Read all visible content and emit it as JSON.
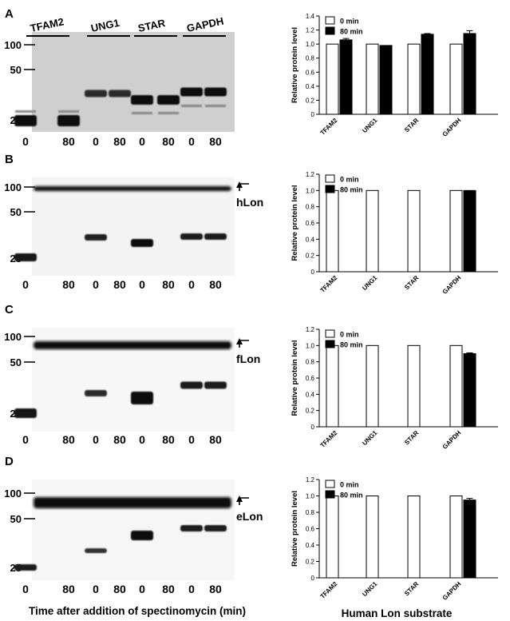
{
  "shared": {
    "gel_proteins": [
      "TFAM2",
      "UNG1",
      "STAR",
      "GAPDH"
    ],
    "lane_labels": [
      "0",
      "80",
      "0",
      "80",
      "0",
      "80",
      "0",
      "80"
    ],
    "mw_markers": [
      "100",
      "50",
      "25"
    ],
    "gel_xlabel": "Time after addition of spectinomycin (min)",
    "chart_xlabel": "Human Lon substrate"
  },
  "panels": [
    {
      "letter": "A",
      "lon_label": ""
    },
    {
      "letter": "B",
      "lon_label": "hLon"
    },
    {
      "letter": "C",
      "lon_label": "fLon"
    },
    {
      "letter": "D",
      "lon_label": "eLon"
    }
  ],
  "chart_data": [
    {
      "type": "bar",
      "panel": "A",
      "categories": [
        "TFAM2",
        "UNG1",
        "STAR",
        "GAPDH"
      ],
      "series": [
        {
          "name": "0 min",
          "values": [
            1.0,
            1.0,
            1.0,
            1.0
          ],
          "color": "#ffffff"
        },
        {
          "name": "80 min",
          "values": [
            1.06,
            0.98,
            1.14,
            1.15
          ],
          "errors": [
            0.02,
            0.0,
            0.01,
            0.04
          ],
          "color": "#000000"
        }
      ],
      "ylabel": "Relative protein level",
      "ylim": [
        0,
        1.4
      ],
      "yticks": [
        "0",
        "0.2",
        "0.4",
        "0.6",
        "0.8",
        "1.0",
        "1.2",
        "1.4"
      ],
      "legend": "top"
    },
    {
      "type": "bar",
      "panel": "B",
      "categories": [
        "TFAM2",
        "UNG1",
        "STAR",
        "GAPDH"
      ],
      "series": [
        {
          "name": "0 min",
          "values": [
            1.0,
            1.0,
            1.0,
            1.0
          ],
          "color": "#ffffff"
        },
        {
          "name": "80 min",
          "values": [
            0,
            0,
            0,
            1.0
          ],
          "errors": [
            0,
            0,
            0,
            0
          ],
          "color": "#000000"
        }
      ],
      "ylabel": "Relative protein level",
      "ylim": [
        0,
        1.2
      ],
      "yticks": [
        "0",
        "0.2",
        "0.4",
        "0.6",
        "0.8",
        "1.0",
        "1.2"
      ],
      "legend": "top"
    },
    {
      "type": "bar",
      "panel": "C",
      "categories": [
        "TFAM2",
        "UNG1",
        "STAR",
        "GAPDH"
      ],
      "series": [
        {
          "name": "0 min",
          "values": [
            1.0,
            1.0,
            1.0,
            1.0
          ],
          "color": "#ffffff"
        },
        {
          "name": "80 min",
          "values": [
            0,
            0,
            0,
            0.9
          ],
          "errors": [
            0,
            0,
            0,
            0.01
          ],
          "color": "#000000"
        }
      ],
      "ylabel": "Relative protein level",
      "ylim": [
        0,
        1.2
      ],
      "yticks": [
        "0",
        "0.2",
        "0.4",
        "0.6",
        "0.8",
        "1.0",
        "1.2"
      ],
      "legend": "top"
    },
    {
      "type": "bar",
      "panel": "D",
      "categories": [
        "TFAM2",
        "UNG1",
        "STAR",
        "GAPDH"
      ],
      "series": [
        {
          "name": "0 min",
          "values": [
            1.0,
            1.0,
            1.0,
            1.0
          ],
          "color": "#ffffff"
        },
        {
          "name": "80 min",
          "values": [
            0,
            0,
            0,
            0.95
          ],
          "errors": [
            0,
            0,
            0,
            0.02
          ],
          "color": "#000000"
        }
      ],
      "ylabel": "Relative protein level",
      "ylim": [
        0,
        1.2
      ],
      "yticks": [
        "0",
        "0.2",
        "0.4",
        "0.6",
        "0.8",
        "1.0",
        "1.2"
      ],
      "legend": "top"
    }
  ]
}
